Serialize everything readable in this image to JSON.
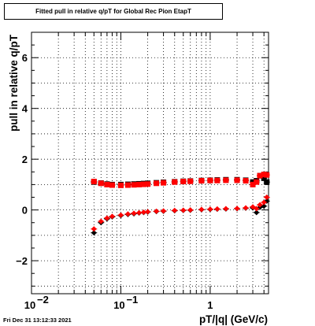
{
  "chart_data": {
    "type": "scatter",
    "title": "Fitted pull in relative q/pT for Global Rec Pion EtapT",
    "xlabel": "pT/|q| (GeV/c)",
    "ylabel": "pull in relative q/pT",
    "x_scale": "log",
    "xlim": [
      0.01,
      4.5
    ],
    "ylim": [
      -3.3,
      7.0
    ],
    "grid": true,
    "x_ticks": [
      {
        "value": 0.01,
        "base": "10",
        "exp": "−2"
      },
      {
        "value": 0.1,
        "base": "10",
        "exp": "−1"
      },
      {
        "value": 1,
        "base": "1",
        "exp": ""
      }
    ],
    "y_ticks": [
      {
        "value": -2,
        "label": "−2"
      },
      {
        "value": 0,
        "label": "0"
      },
      {
        "value": 2,
        "label": "2"
      },
      {
        "value": 4,
        "label": "4"
      },
      {
        "value": 6,
        "label": "6"
      }
    ],
    "series": [
      {
        "color": "#000000",
        "marker": "square",
        "x": [
          0.05,
          0.06,
          0.07,
          0.08,
          0.1,
          0.12,
          0.14,
          0.16,
          0.18,
          0.2,
          0.25,
          0.3,
          0.4,
          0.5,
          0.6,
          0.8,
          1.0,
          1.2,
          1.5,
          2.0,
          2.5,
          3.0,
          3.3,
          3.6,
          4.0,
          4.3
        ],
        "y": [
          1.1,
          1.06,
          1.02,
          1.0,
          1.0,
          1.01,
          1.02,
          1.03,
          1.04,
          1.05,
          1.07,
          1.09,
          1.11,
          1.13,
          1.14,
          1.16,
          1.17,
          1.18,
          1.19,
          1.19,
          1.17,
          1.1,
          1.15,
          1.35,
          1.25,
          1.1
        ]
      },
      {
        "color": "#ff0000",
        "marker": "square",
        "x": [
          0.05,
          0.06,
          0.07,
          0.08,
          0.1,
          0.12,
          0.14,
          0.16,
          0.18,
          0.2,
          0.25,
          0.3,
          0.4,
          0.5,
          0.6,
          0.8,
          1.0,
          1.2,
          1.5,
          2.0,
          2.5,
          3.0,
          3.3,
          3.6,
          4.0,
          4.3
        ],
        "y": [
          1.12,
          1.05,
          1.0,
          0.98,
          0.97,
          0.98,
          0.99,
          1.0,
          1.01,
          1.02,
          1.05,
          1.07,
          1.1,
          1.12,
          1.13,
          1.15,
          1.16,
          1.16,
          1.17,
          1.17,
          1.15,
          1.0,
          1.1,
          1.35,
          1.4,
          1.38
        ]
      },
      {
        "color": "#000000",
        "marker": "diamond",
        "x": [
          0.05,
          0.06,
          0.07,
          0.08,
          0.1,
          0.12,
          0.14,
          0.16,
          0.18,
          0.2,
          0.25,
          0.3,
          0.4,
          0.5,
          0.6,
          0.8,
          1.0,
          1.2,
          1.5,
          2.0,
          2.5,
          3.0,
          3.3,
          3.6,
          4.0,
          4.3
        ],
        "y": [
          -0.9,
          -0.5,
          -0.35,
          -0.27,
          -0.22,
          -0.18,
          -0.15,
          -0.12,
          -0.1,
          -0.08,
          -0.06,
          -0.05,
          -0.03,
          -0.02,
          -0.01,
          0.01,
          0.02,
          0.03,
          0.04,
          0.05,
          0.07,
          0.08,
          -0.1,
          0.1,
          0.15,
          0.35
        ]
      },
      {
        "color": "#ff0000",
        "marker": "diamond",
        "x": [
          0.05,
          0.06,
          0.07,
          0.08,
          0.1,
          0.12,
          0.14,
          0.16,
          0.18,
          0.2,
          0.25,
          0.3,
          0.4,
          0.5,
          0.6,
          0.8,
          1.0,
          1.2,
          1.5,
          2.0,
          2.5,
          3.0,
          3.3,
          3.6,
          4.0,
          4.3
        ],
        "y": [
          -0.75,
          -0.45,
          -0.32,
          -0.25,
          -0.2,
          -0.16,
          -0.13,
          -0.11,
          -0.09,
          -0.07,
          -0.05,
          -0.04,
          -0.02,
          -0.01,
          0.0,
          0.02,
          0.03,
          0.04,
          0.05,
          0.06,
          0.08,
          0.12,
          0.05,
          0.2,
          0.3,
          0.5
        ]
      }
    ]
  },
  "timestamp": "Fri Dec 31 13:12:33 2021"
}
